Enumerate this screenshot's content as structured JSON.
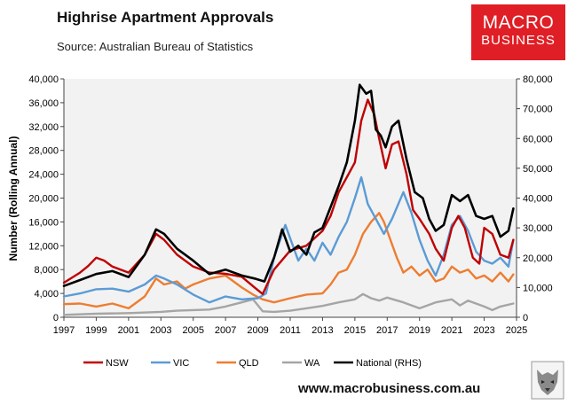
{
  "header": {
    "title": "Highrise Apartment Approvals",
    "subtitle": "Source: Australian Bureau of Statistics"
  },
  "logo": {
    "line1": "MACRO",
    "line2": "BUSINESS"
  },
  "footer": {
    "url": "www.macrobusiness.com.au"
  },
  "colors": {
    "NSW": "#c00000",
    "VIC": "#5b9bd5",
    "QLD": "#ed7d31",
    "WA": "#a5a5a5",
    "National (RHS)": "#000000",
    "logo_bg": "#e01e25"
  },
  "chart_data": {
    "type": "line",
    "ylabel": "Number (Rolling Annual)",
    "ylim": [
      0,
      40000
    ],
    "y2lim": [
      0,
      80000
    ],
    "xlim": [
      1997,
      2025
    ],
    "yticks": [
      "0",
      "4,000",
      "8,000",
      "12,000",
      "16,000",
      "20,000",
      "24,000",
      "28,000",
      "32,000",
      "36,000",
      "40,000"
    ],
    "y2ticks": [
      "0",
      "10,000",
      "20,000",
      "30,000",
      "40,000",
      "50,000",
      "60,000",
      "70,000",
      "80,000"
    ],
    "xticks": [
      "1997",
      "1999",
      "2001",
      "2003",
      "2005",
      "2007",
      "2009",
      "2011",
      "2013",
      "2015",
      "2017",
      "2019",
      "2021",
      "2023",
      "2025"
    ],
    "legend_position": "bottom",
    "grid": false,
    "series": [
      {
        "name": "NSW",
        "axis": "left",
        "x": [
          1997,
          1998,
          1998.5,
          1999,
          1999.5,
          2000,
          2001,
          2002,
          2002.7,
          2003.2,
          2004,
          2005,
          2006,
          2007,
          2008,
          2008.8,
          2009.3,
          2010,
          2011,
          2012,
          2013,
          2013.5,
          2014,
          2014.5,
          2015,
          2015.4,
          2015.8,
          2016.2,
          2016.5,
          2016.9,
          2017.3,
          2017.7,
          2018.2,
          2018.6,
          2019,
          2019.6,
          2020,
          2020.5,
          2021,
          2021.4,
          2021.8,
          2022.3,
          2022.7,
          2023,
          2023.5,
          2024,
          2024.5,
          2024.8
        ],
        "values": [
          5800,
          7500,
          8600,
          10000,
          9500,
          8500,
          7500,
          10500,
          14000,
          13000,
          10500,
          8500,
          7500,
          7300,
          6800,
          5000,
          3900,
          8000,
          11200,
          12000,
          14500,
          17000,
          21000,
          23500,
          26000,
          33000,
          36500,
          34000,
          30000,
          25000,
          29000,
          29500,
          24000,
          18000,
          16500,
          14000,
          11500,
          9500,
          15000,
          17000,
          15000,
          10000,
          9000,
          15000,
          14000,
          10500,
          10000,
          13000
        ]
      },
      {
        "name": "VIC",
        "axis": "left",
        "x": [
          1997,
          1998,
          1999,
          2000,
          2001,
          2002,
          2002.7,
          2003.2,
          2004,
          2005,
          2006,
          2007,
          2008,
          2009,
          2009.5,
          2010,
          2010.7,
          2011.5,
          2012,
          2012.5,
          2013,
          2013.5,
          2014,
          2014.5,
          2015,
          2015.4,
          2015.8,
          2016.3,
          2016.8,
          2017.3,
          2018,
          2018.5,
          2019,
          2019.5,
          2020,
          2020.5,
          2021,
          2021.5,
          2022,
          2022.5,
          2023,
          2023.5,
          2024,
          2024.5,
          2024.8
        ],
        "values": [
          3500,
          4000,
          4700,
          4800,
          4300,
          5500,
          7000,
          6500,
          5500,
          3800,
          2500,
          3500,
          3000,
          3200,
          4000,
          10000,
          15500,
          9500,
          11500,
          9500,
          12500,
          10500,
          13500,
          16000,
          20000,
          23500,
          19000,
          16500,
          14000,
          16500,
          21000,
          17500,
          13000,
          9500,
          7000,
          10500,
          15500,
          17000,
          14500,
          11000,
          9500,
          9000,
          10000,
          8500,
          13000
        ]
      },
      {
        "name": "QLD",
        "axis": "left",
        "x": [
          1997,
          1998,
          1999,
          2000,
          2001,
          2002,
          2002.7,
          2003.2,
          2004,
          2004.5,
          2005,
          2006,
          2007,
          2008,
          2008.7,
          2009.3,
          2010,
          2011,
          2012,
          2013,
          2013.5,
          2014,
          2014.5,
          2015,
          2015.5,
          2016,
          2016.5,
          2016.8,
          2017.2,
          2017.6,
          2018,
          2018.5,
          2019,
          2019.5,
          2020,
          2020.5,
          2021,
          2021.5,
          2022,
          2022.5,
          2023,
          2023.5,
          2024,
          2024.5,
          2024.8
        ],
        "values": [
          2200,
          2300,
          1800,
          2300,
          1500,
          3500,
          6500,
          5500,
          6000,
          4800,
          5500,
          6500,
          7000,
          5000,
          3800,
          3000,
          2500,
          3200,
          3800,
          4000,
          5500,
          7500,
          8000,
          10500,
          14000,
          16000,
          17500,
          16000,
          13000,
          10000,
          7500,
          8500,
          7000,
          8000,
          6000,
          6500,
          8500,
          7500,
          8000,
          6500,
          7000,
          6000,
          7500,
          6000,
          7200
        ]
      },
      {
        "name": "WA",
        "axis": "left",
        "x": [
          1997,
          1999,
          2001,
          2003,
          2004,
          2005,
          2006,
          2007,
          2008,
          2008.7,
          2009.3,
          2010,
          2011,
          2012,
          2013,
          2014,
          2015,
          2015.5,
          2016,
          2016.5,
          2017,
          2018,
          2019,
          2020,
          2021,
          2021.5,
          2022,
          2023,
          2023.5,
          2024,
          2024.8
        ],
        "values": [
          400,
          600,
          700,
          900,
          1100,
          1200,
          1300,
          1800,
          2500,
          3000,
          1000,
          900,
          1100,
          1500,
          1900,
          2500,
          3000,
          3900,
          3200,
          2800,
          3300,
          2500,
          1500,
          2500,
          3000,
          2000,
          2800,
          1800,
          1200,
          1800,
          2300
        ]
      },
      {
        "name": "National (RHS)",
        "axis": "right",
        "x": [
          1997,
          1998,
          1999,
          2000,
          2001,
          2002,
          2002.7,
          2003.2,
          2004,
          2005,
          2006,
          2007,
          2008,
          2008.8,
          2009.4,
          2010,
          2010.5,
          2011,
          2011.5,
          2012,
          2012.5,
          2013,
          2013.5,
          2014,
          2014.5,
          2015,
          2015.3,
          2015.7,
          2016,
          2016.3,
          2016.6,
          2016.9,
          2017.3,
          2017.7,
          2018.2,
          2018.7,
          2019.2,
          2019.6,
          2020,
          2020.5,
          2021,
          2021.5,
          2022,
          2022.5,
          2023,
          2023.5,
          2024,
          2024.5,
          2024.8
        ],
        "values": [
          10500,
          12500,
          14500,
          15500,
          13500,
          21000,
          29500,
          28000,
          23000,
          19000,
          14500,
          16000,
          14000,
          13000,
          12000,
          20000,
          29500,
          22000,
          24000,
          21000,
          28500,
          30000,
          37000,
          44000,
          52000,
          66000,
          78000,
          75000,
          76000,
          63000,
          61000,
          57000,
          64000,
          66000,
          53000,
          42000,
          40000,
          33000,
          29000,
          31000,
          41000,
          39000,
          41000,
          34000,
          33000,
          34000,
          27000,
          29000,
          36500
        ]
      }
    ]
  }
}
